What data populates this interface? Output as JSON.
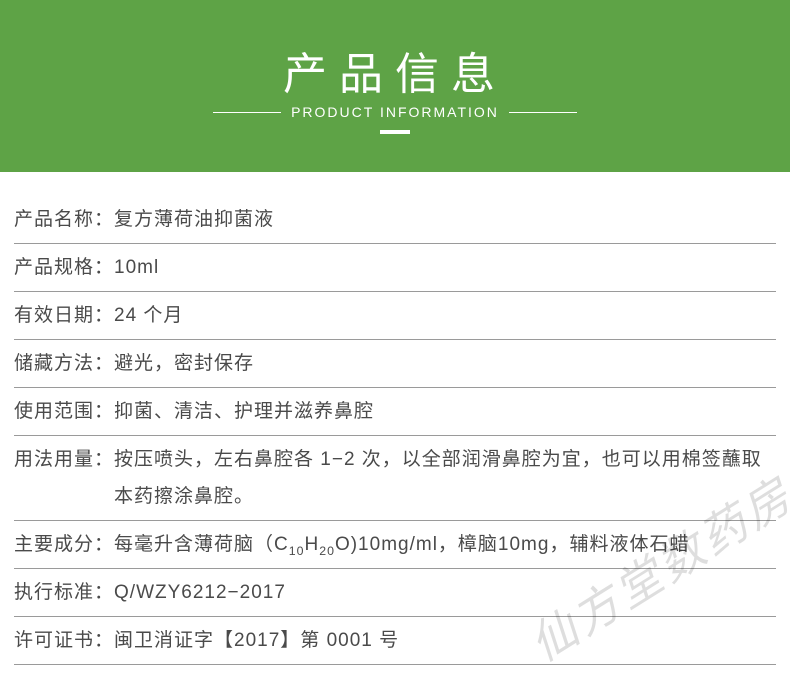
{
  "header": {
    "title_cn": "产品信息",
    "title_en": "PRODUCT INFORMATION",
    "background_color": "#5ea346",
    "text_color": "#ffffff"
  },
  "table": {
    "border_color": "#9a9a9a",
    "text_color": "#4a4a4a",
    "rows": [
      {
        "label": "产品名称：",
        "value": "复方薄荷油抑菌液"
      },
      {
        "label": "产品规格：",
        "value": "10ml"
      },
      {
        "label": "有效日期：",
        "value": "24 个月"
      },
      {
        "label": "储藏方法：",
        "value": "避光，密封保存"
      },
      {
        "label": "使用范围：",
        "value": "抑菌、清洁、护理并滋养鼻腔"
      },
      {
        "label": "用法用量：",
        "value": "按压喷头，左右鼻腔各 1−2 次，以全部润滑鼻腔为宜，也可以用棉签蘸取本药擦涂鼻腔。"
      },
      {
        "label": "主要成分：",
        "value_html": "每毫升含薄荷脑（C<sub>10</sub>H<sub>20</sub>O)10mg/ml，樟脑10mg，辅料液体石蜡"
      },
      {
        "label": "执行标准：",
        "value": "Q/WZY6212−2017"
      },
      {
        "label": "许可证书：",
        "value": "闽卫消证字【2017】第 0001 号"
      }
    ]
  },
  "watermark": {
    "text": "仙方堂数药房",
    "color": "rgba(0,0,0,0.13)"
  }
}
